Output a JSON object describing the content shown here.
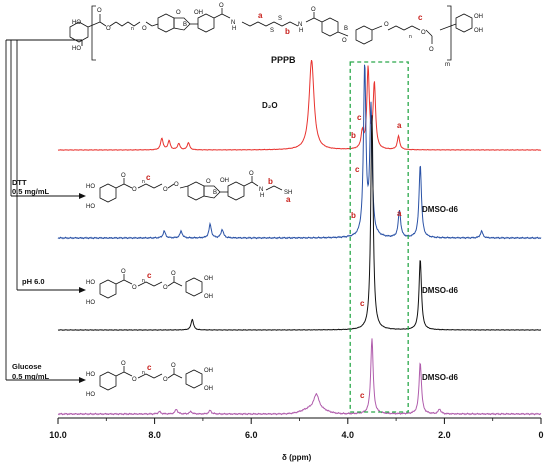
{
  "figure": {
    "polymer_label": "PPPB",
    "subscript_n": "n",
    "subscript_m": "m",
    "peak_labels": {
      "a": "a",
      "b": "b",
      "c": "c"
    },
    "solvent_d2o": "D₂O",
    "solvent_dmso": "DMSO-d6",
    "conditions": [
      {
        "line1": "DTT",
        "line2": "0.5 mg/mL"
      },
      {
        "line1": "pH 6.0",
        "line2": ""
      },
      {
        "line1": "Glucose",
        "line2": "0.5 mg/mL"
      }
    ],
    "chem_atoms": {
      "OH": "OH",
      "HO": "HO",
      "O": "O",
      "B": "B",
      "N": "N",
      "H": "H",
      "S": "S",
      "SH": "SH"
    }
  },
  "chart_data": {
    "type": "line",
    "xlabel": "δ (ppm)",
    "xlim": [
      10.0,
      0
    ],
    "x_reversed": true,
    "xticks": [
      "10.0",
      "8.0",
      "6.0",
      "4.0",
      "2.0",
      "0"
    ],
    "grid": false,
    "highlight_box_ppm": [
      3.95,
      2.75
    ],
    "series": [
      {
        "solvent": "D₂O",
        "color": "#e8322e",
        "peaks": [
          {
            "ppm": 7.85,
            "h": 0.13
          },
          {
            "ppm": 7.7,
            "h": 0.1
          },
          {
            "ppm": 7.5,
            "h": 0.07
          },
          {
            "ppm": 7.3,
            "h": 0.08
          },
          {
            "ppm": 4.75,
            "h": 1.0
          },
          {
            "ppm": 3.7,
            "h": 0.18,
            "label": "b"
          },
          {
            "ppm": 3.58,
            "h": 0.89,
            "label": "c"
          },
          {
            "ppm": 3.45,
            "h": 0.72
          },
          {
            "ppm": 2.95,
            "h": 0.15,
            "label": "a"
          }
        ]
      },
      {
        "solvent": "DMSO-d6",
        "color": "#2a52a6",
        "peaks": [
          {
            "ppm": 7.8,
            "h": 0.04
          },
          {
            "ppm": 7.45,
            "h": 0.04
          },
          {
            "ppm": 6.85,
            "h": 0.08
          },
          {
            "ppm": 6.6,
            "h": 0.05
          },
          {
            "ppm": 3.65,
            "h": 1.0,
            "label": "c"
          },
          {
            "ppm": 3.52,
            "h": 0.75
          },
          {
            "ppm": 2.93,
            "h": 0.16,
            "label": "a"
          },
          {
            "ppm": 2.5,
            "h": 0.43
          },
          {
            "ppm": 1.23,
            "h": 0.04
          }
        ]
      },
      {
        "solvent": "DMSO-d6",
        "color": "#111111",
        "peaks": [
          {
            "ppm": 7.22,
            "h": 0.05
          },
          {
            "ppm": 3.5,
            "h": 1.0,
            "label": "c"
          },
          {
            "ppm": 2.5,
            "h": 0.33
          }
        ]
      },
      {
        "solvent": "DMSO-d6",
        "color": "#b05cac",
        "peaks": [
          {
            "ppm": 7.9,
            "h": 0.02
          },
          {
            "ppm": 7.55,
            "h": 0.04
          },
          {
            "ppm": 7.25,
            "h": 0.02
          },
          {
            "ppm": 6.85,
            "h": 0.03
          },
          {
            "ppm": 4.65,
            "h": 0.12
          },
          {
            "ppm": 3.5,
            "h": 0.63,
            "label": "c"
          },
          {
            "ppm": 2.5,
            "h": 0.43
          },
          {
            "ppm": 2.1,
            "h": 0.04
          }
        ]
      }
    ]
  }
}
